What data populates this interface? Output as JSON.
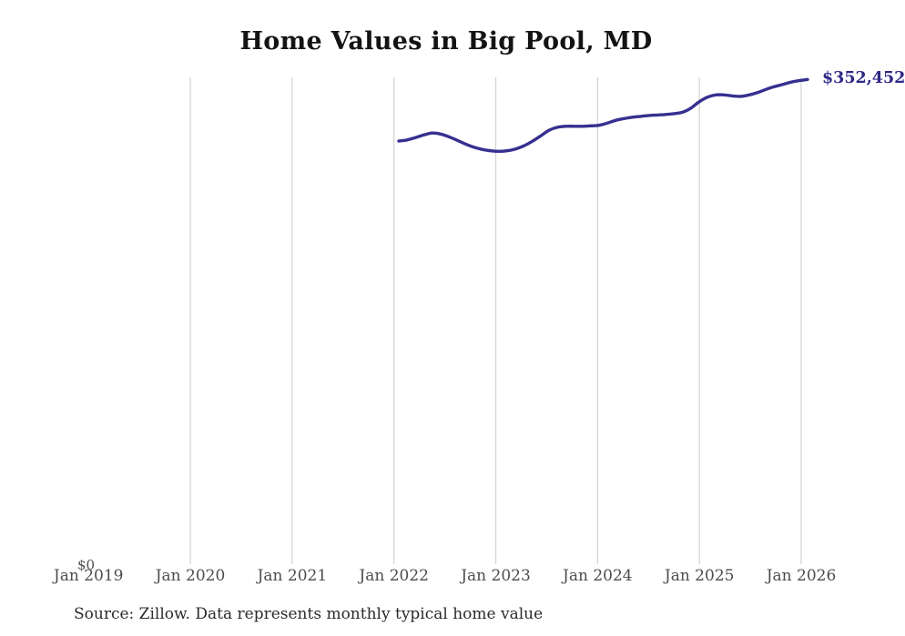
{
  "page": {
    "title": "Home Values in Big Pool, MD",
    "source_note": "Source: Zillow. Data represents monthly typical home value"
  },
  "chart_data": {
    "type": "line",
    "title": "Home Values in Big Pool, MD",
    "series_name": "Monthly typical home value",
    "x": [
      "2022-01",
      "2022-02",
      "2022-03",
      "2022-04",
      "2022-05",
      "2022-06",
      "2022-07",
      "2022-08",
      "2022-09",
      "2022-10",
      "2022-11",
      "2022-12",
      "2023-01",
      "2023-02",
      "2023-03",
      "2023-04",
      "2023-05",
      "2023-06",
      "2023-07",
      "2023-08",
      "2023-09",
      "2023-10",
      "2023-11",
      "2023-12",
      "2024-01",
      "2024-02",
      "2024-03",
      "2024-04",
      "2024-05",
      "2024-06",
      "2024-07",
      "2024-08",
      "2024-09",
      "2024-10",
      "2024-11",
      "2024-12",
      "2025-01",
      "2025-02",
      "2025-03",
      "2025-04",
      "2025-05",
      "2025-06",
      "2025-07",
      "2025-08",
      "2025-09",
      "2025-10",
      "2025-11",
      "2025-12",
      "2026-01",
      "2026-02"
    ],
    "values": [
      307700,
      308500,
      310200,
      312100,
      313500,
      312800,
      310800,
      308200,
      305500,
      303200,
      301600,
      300600,
      300200,
      300600,
      301900,
      304200,
      307500,
      311400,
      315400,
      317700,
      318400,
      318400,
      318400,
      318700,
      319100,
      320700,
      322700,
      324000,
      325000,
      325600,
      326300,
      326600,
      327000,
      327600,
      328600,
      331600,
      336200,
      339600,
      341200,
      341200,
      340500,
      340200,
      341200,
      342900,
      345200,
      347200,
      348800,
      350500,
      351600,
      352452
    ],
    "latest_label": "$352,452",
    "y_zero_label": "$0",
    "x_tick_labels": [
      "Jan 2019",
      "Jan 2020",
      "Jan 2021",
      "Jan 2022",
      "Jan 2023",
      "Jan 2024",
      "Jan 2025",
      "Jan 2026"
    ],
    "ylim": [
      0,
      354000
    ],
    "grid": "vertical-yearly-no-first",
    "legend": "none",
    "line_color": "#35308f",
    "label_color": "#2e2887",
    "grid_color": "#d2d2d2",
    "tick_color": "#4d4d4d"
  }
}
